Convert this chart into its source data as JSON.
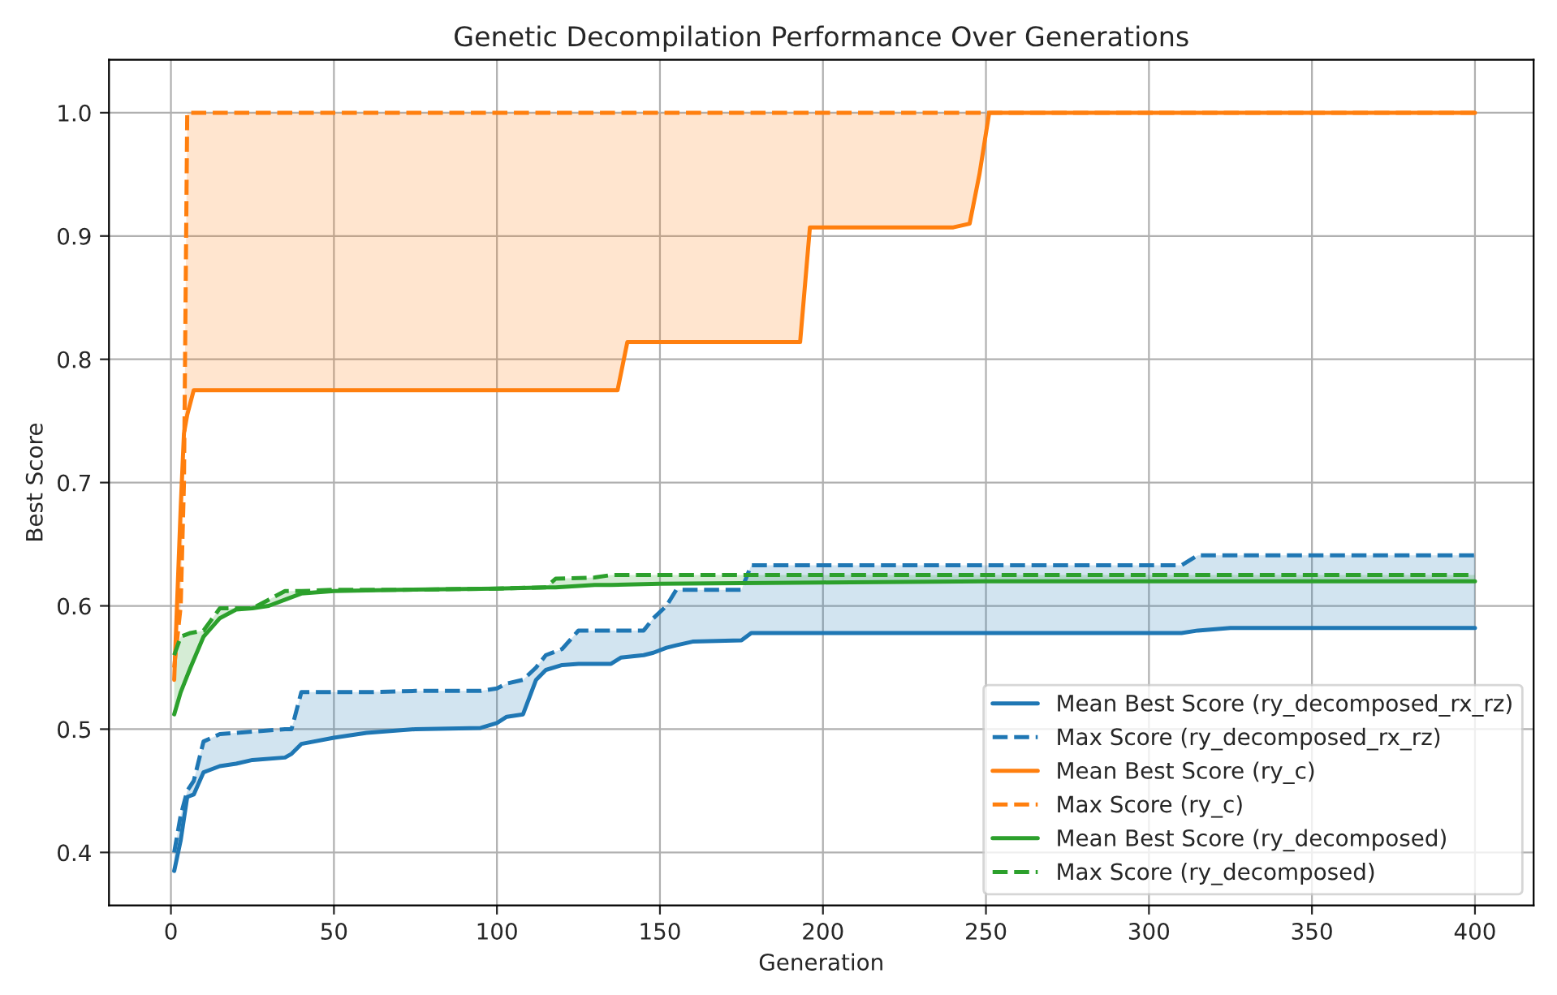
{
  "chart_data": {
    "type": "line",
    "title": "Genetic Decompilation Performance Over Generations",
    "xlabel": "Generation",
    "ylabel": "Best Score",
    "xlim": [
      -19,
      418
    ],
    "xticks": [
      0,
      50,
      100,
      150,
      200,
      250,
      300,
      350,
      400
    ],
    "ylim": [
      0.357,
      1.043
    ],
    "yticks": [
      0.4,
      0.5,
      0.6,
      0.7,
      0.8,
      0.9,
      {
        "value": 1,
        "label": "1.0"
      }
    ],
    "grid": true,
    "legend": "bottom right",
    "series": [
      {
        "name": "Mean Best Score (ry_decomposed_rx_rz)",
        "color": "#1f77b4",
        "line_style": "solid",
        "x": [
          1,
          3,
          5,
          7,
          10,
          15,
          20,
          25,
          35,
          37,
          40,
          50,
          60,
          75,
          95,
          100,
          103,
          108,
          112,
          115,
          120,
          125,
          135,
          138,
          145,
          148,
          152,
          155,
          160,
          175,
          178,
          310,
          315,
          325,
          400
        ],
        "values": [
          0.385,
          0.41,
          0.445,
          0.447,
          0.465,
          0.47,
          0.472,
          0.475,
          0.477,
          0.48,
          0.488,
          0.493,
          0.497,
          0.5,
          0.501,
          0.505,
          0.51,
          0.512,
          0.54,
          0.548,
          0.552,
          0.553,
          0.553,
          0.558,
          0.56,
          0.562,
          0.566,
          0.568,
          0.571,
          0.572,
          0.578,
          0.578,
          0.58,
          0.582,
          0.582
        ],
        "lower": [
          0.385,
          0.41,
          0.445,
          0.447,
          0.465,
          0.47,
          0.472,
          0.475,
          0.477,
          0.48,
          0.488,
          0.493,
          0.497,
          0.5,
          0.501,
          0.505,
          0.51,
          0.512,
          0.54,
          0.548,
          0.552,
          0.553,
          0.553,
          0.558,
          0.56,
          0.562,
          0.566,
          0.568,
          0.571,
          0.572,
          0.578,
          0.578,
          0.58,
          0.582,
          0.582
        ],
        "upper": [
          0.4,
          0.43,
          0.45,
          0.458,
          0.49,
          0.496,
          0.497,
          0.498,
          0.5,
          0.5,
          0.53,
          0.53,
          0.53,
          0.531,
          0.531,
          0.533,
          0.537,
          0.54,
          0.55,
          0.56,
          0.565,
          0.58,
          0.58,
          0.58,
          0.58,
          0.59,
          0.6,
          0.613,
          0.613,
          0.613,
          0.633,
          0.633,
          0.641,
          0.641,
          0.641
        ]
      },
      {
        "name": "Max Score (ry_decomposed_rx_rz)",
        "color": "#1f77b4",
        "line_style": "dashed",
        "x": [
          1,
          3,
          5,
          7,
          10,
          15,
          20,
          25,
          35,
          37,
          40,
          50,
          60,
          75,
          95,
          100,
          103,
          108,
          112,
          115,
          120,
          125,
          135,
          138,
          145,
          148,
          152,
          155,
          160,
          175,
          178,
          310,
          315,
          325,
          400
        ],
        "values": [
          0.4,
          0.43,
          0.45,
          0.458,
          0.49,
          0.496,
          0.497,
          0.498,
          0.5,
          0.5,
          0.53,
          0.53,
          0.53,
          0.531,
          0.531,
          0.533,
          0.537,
          0.54,
          0.55,
          0.56,
          0.565,
          0.58,
          0.58,
          0.58,
          0.58,
          0.59,
          0.6,
          0.613,
          0.613,
          0.613,
          0.633,
          0.633,
          0.641,
          0.641,
          0.641
        ]
      },
      {
        "name": "Mean Best Score (ry_c)",
        "color": "#ff7f0e",
        "line_style": "solid",
        "x": [
          1,
          3,
          4,
          5,
          7,
          137,
          140,
          193,
          196,
          240,
          245,
          248,
          251,
          400
        ],
        "values": [
          0.54,
          0.68,
          0.74,
          0.755,
          0.775,
          0.775,
          0.814,
          0.814,
          0.907,
          0.907,
          0.91,
          0.95,
          1.0,
          1.0
        ],
        "lower": [
          0.54,
          0.68,
          0.74,
          0.755,
          0.775,
          0.775,
          0.814,
          0.814,
          0.907,
          0.907,
          0.91,
          0.95,
          1.0,
          1.0
        ],
        "upper": [
          0.55,
          0.6,
          0.7,
          1.0,
          1.0,
          1.0,
          1.0,
          1.0,
          1.0,
          1.0,
          1.0,
          1.0,
          1.0,
          1.0
        ]
      },
      {
        "name": "Max Score (ry_c)",
        "color": "#ff7f0e",
        "line_style": "dashed",
        "x": [
          1,
          3,
          4,
          5,
          7,
          137,
          140,
          193,
          196,
          240,
          245,
          248,
          251,
          400
        ],
        "values": [
          0.55,
          0.6,
          0.7,
          1.0,
          1.0,
          1.0,
          1.0,
          1.0,
          1.0,
          1.0,
          1.0,
          1.0,
          1.0,
          1.0
        ]
      },
      {
        "name": "Mean Best Score (ry_decomposed)",
        "color": "#2ca02c",
        "line_style": "solid",
        "x": [
          1,
          3,
          6,
          10,
          15,
          20,
          25,
          30,
          35,
          40,
          50,
          70,
          100,
          115,
          118,
          130,
          135,
          150,
          200,
          250,
          400
        ],
        "values": [
          0.512,
          0.53,
          0.55,
          0.575,
          0.59,
          0.597,
          0.598,
          0.6,
          0.605,
          0.61,
          0.612,
          0.613,
          0.614,
          0.615,
          0.615,
          0.617,
          0.617,
          0.618,
          0.619,
          0.62,
          0.62
        ],
        "lower": [
          0.512,
          0.53,
          0.55,
          0.575,
          0.59,
          0.597,
          0.598,
          0.6,
          0.605,
          0.61,
          0.612,
          0.613,
          0.614,
          0.615,
          0.615,
          0.617,
          0.617,
          0.618,
          0.619,
          0.62,
          0.62
        ],
        "upper": [
          0.56,
          0.575,
          0.578,
          0.58,
          0.598,
          0.598,
          0.598,
          0.605,
          0.612,
          0.612,
          0.613,
          0.613,
          0.614,
          0.615,
          0.622,
          0.623,
          0.625,
          0.625,
          0.625,
          0.625,
          0.625
        ]
      },
      {
        "name": "Max Score (ry_decomposed)",
        "color": "#2ca02c",
        "line_style": "dashed",
        "x": [
          1,
          3,
          6,
          10,
          15,
          20,
          25,
          30,
          35,
          40,
          50,
          70,
          100,
          115,
          118,
          130,
          135,
          150,
          200,
          250,
          400
        ],
        "values": [
          0.56,
          0.575,
          0.578,
          0.58,
          0.598,
          0.598,
          0.598,
          0.605,
          0.612,
          0.612,
          0.613,
          0.613,
          0.614,
          0.615,
          0.622,
          0.623,
          0.625,
          0.625,
          0.625,
          0.625,
          0.625
        ]
      }
    ]
  }
}
